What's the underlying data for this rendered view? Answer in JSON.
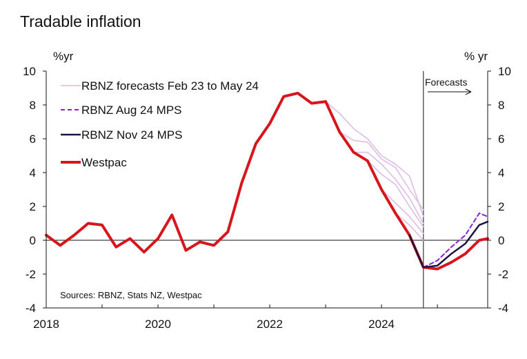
{
  "chart_data": {
    "type": "line",
    "title": "Tradable inflation",
    "ylabel_left": "%yr",
    "ylabel_right": "% yr",
    "ylim": [
      -4,
      10
    ],
    "yticks": [
      -4,
      -2,
      0,
      2,
      4,
      6,
      8,
      10
    ],
    "xlim": [
      2018.0,
      2025.9
    ],
    "xticks": [
      2018,
      2020,
      2022,
      2024
    ],
    "forecast_start": 2024.75,
    "forecast_label": "Forecasts",
    "source": "Sources: RBNZ, Stats NZ, Westpac",
    "colors": {
      "westpac": "#d6161b",
      "rbnz_nov": "#1b1440",
      "rbnz_aug": "#8a1fd3",
      "rbnz_feb_may": "#dcb8e6",
      "axis": "#111111"
    },
    "legend": [
      {
        "key": "feb_may",
        "label": "RBNZ forecasts Feb 23 to May 24"
      },
      {
        "key": "aug",
        "label": "RBNZ Aug 24 MPS"
      },
      {
        "key": "nov",
        "label": "RBNZ Nov 24 MPS"
      },
      {
        "key": "westpac",
        "label": "Westpac"
      }
    ],
    "series": [
      {
        "name": "Westpac",
        "key": "westpac",
        "x": [
          2018.0,
          2018.25,
          2018.5,
          2018.75,
          2019.0,
          2019.25,
          2019.5,
          2019.75,
          2020.0,
          2020.25,
          2020.5,
          2020.75,
          2021.0,
          2021.25,
          2021.5,
          2021.75,
          2022.0,
          2022.25,
          2022.5,
          2022.75,
          2023.0,
          2023.25,
          2023.5,
          2023.75,
          2024.0,
          2024.25,
          2024.5,
          2024.75,
          2025.0,
          2025.25,
          2025.5,
          2025.75,
          2025.9
        ],
        "values": [
          0.3,
          -0.3,
          0.3,
          1.0,
          0.9,
          -0.4,
          0.1,
          -0.7,
          0.1,
          1.5,
          -0.6,
          -0.1,
          -0.3,
          0.5,
          3.4,
          5.7,
          6.9,
          8.5,
          8.7,
          8.1,
          8.2,
          6.4,
          5.2,
          4.7,
          3.0,
          1.6,
          0.3,
          -1.6,
          -1.7,
          -1.3,
          -0.8,
          0.0,
          0.1
        ]
      },
      {
        "name": "RBNZ Nov 24 MPS",
        "key": "nov",
        "x": [
          2024.5,
          2024.75,
          2025.0,
          2025.25,
          2025.5,
          2025.75,
          2025.9
        ],
        "values": [
          0.3,
          -1.6,
          -1.5,
          -0.8,
          -0.2,
          0.9,
          1.1
        ]
      },
      {
        "name": "RBNZ Aug 24 MPS",
        "key": "aug",
        "x": [
          2024.75,
          2025.0,
          2025.25,
          2025.5,
          2025.75,
          2025.9
        ],
        "values": [
          -1.6,
          -1.2,
          -0.4,
          0.3,
          1.6,
          1.4
        ]
      },
      {
        "name": "RBNZ Feb 23",
        "key": "feb_may",
        "x": [
          2023.0,
          2023.25,
          2023.5,
          2023.75,
          2024.0,
          2024.25,
          2024.5,
          2024.75
        ],
        "values": [
          8.2,
          7.5,
          6.6,
          6.0,
          5.0,
          4.5,
          3.8,
          1.4
        ]
      },
      {
        "name": "RBNZ May 23",
        "key": "feb_may",
        "x": [
          2023.25,
          2023.5,
          2023.75,
          2024.0,
          2024.25,
          2024.5,
          2024.75
        ],
        "values": [
          6.4,
          5.9,
          5.8,
          4.8,
          4.3,
          3.0,
          1.8
        ]
      },
      {
        "name": "RBNZ Aug 23",
        "key": "feb_may",
        "x": [
          2023.5,
          2023.75,
          2024.0,
          2024.25,
          2024.5,
          2024.75
        ],
        "values": [
          5.2,
          5.2,
          4.5,
          3.6,
          2.5,
          1.0
        ]
      },
      {
        "name": "RBNZ Nov 23",
        "key": "feb_may",
        "x": [
          2023.75,
          2024.0,
          2024.25,
          2024.5,
          2024.75
        ],
        "values": [
          4.7,
          3.9,
          3.3,
          2.0,
          0.8
        ]
      },
      {
        "name": "RBNZ Feb 24",
        "key": "feb_may",
        "x": [
          2024.0,
          2024.25,
          2024.5,
          2024.75
        ],
        "values": [
          3.0,
          2.2,
          1.4,
          0.4
        ]
      },
      {
        "name": "RBNZ May 24",
        "key": "feb_may",
        "x": [
          2024.25,
          2024.5,
          2024.75
        ],
        "values": [
          1.6,
          0.9,
          0.0
        ]
      }
    ]
  }
}
